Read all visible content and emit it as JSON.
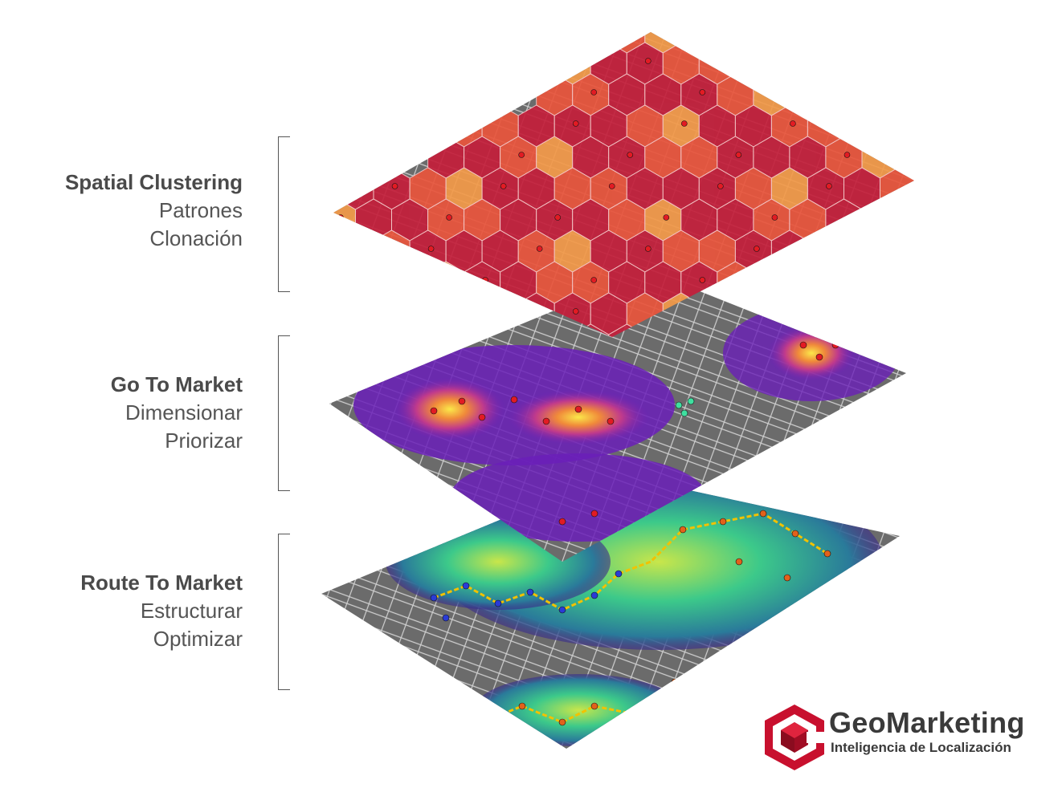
{
  "sections": [
    {
      "title": "Spatial Clustering",
      "lines": [
        "Patrones",
        "Clonación"
      ]
    },
    {
      "title": "Go To Market",
      "lines": [
        "Dimensionar",
        "Priorizar"
      ]
    },
    {
      "title": "Route To Market",
      "lines": [
        "Estructurar",
        "Optimizar"
      ]
    }
  ],
  "layers": [
    {
      "name": "hexbin-clusters",
      "style": "hexagons"
    },
    {
      "name": "heatmap-density",
      "style": "heatmap"
    },
    {
      "name": "route-network",
      "style": "routes"
    }
  ],
  "colors": {
    "hex_dark": "#c4203c",
    "hex_mid": "#e9553d",
    "hex_light": "#f39a4a",
    "map_base": "#6b6b6b",
    "heat_purple": "#6a1fb8",
    "heat_yellow": "#f7e64a",
    "route_green": "#2fbf8e",
    "route_line": "#f2c200",
    "point_red": "#e21b23",
    "point_blue": "#2a3bd6",
    "logo_red": "#c8102e"
  },
  "logo": {
    "title": "GeoMarketing",
    "subtitle": "Inteligencia de Localización"
  }
}
